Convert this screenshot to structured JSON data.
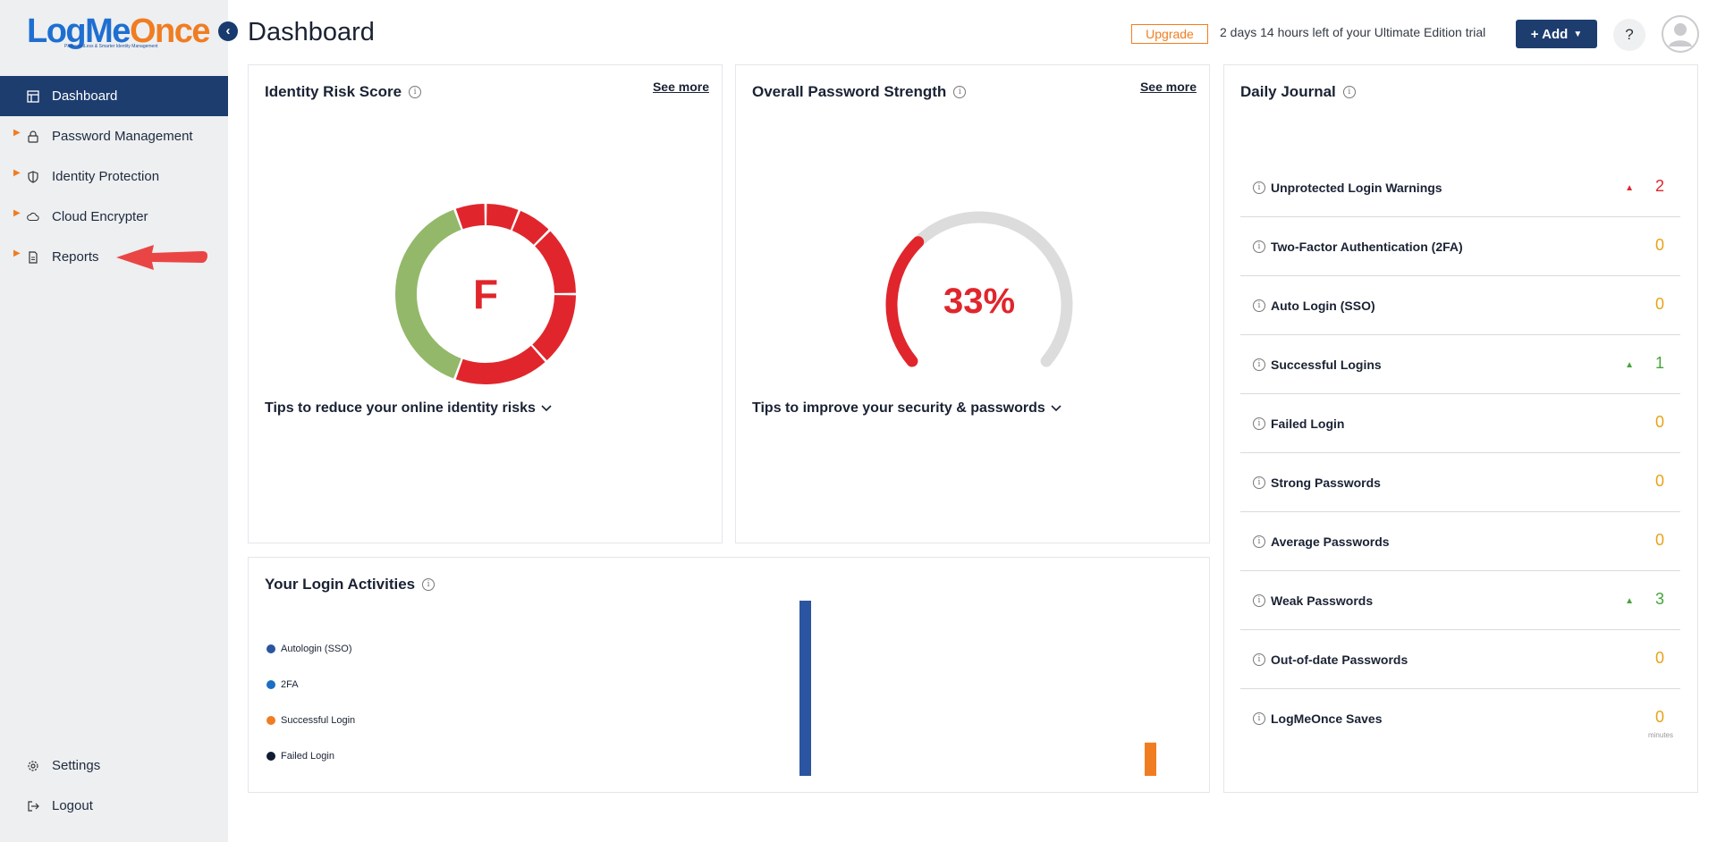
{
  "brand": {
    "logo_part1": "LogMe",
    "logo_part2": "Once",
    "tagline": "PasswordLess & Smarter Identity Management"
  },
  "sidebar": {
    "collapse_icon": "chevron-left-icon",
    "items": [
      {
        "label": "Dashboard",
        "icon": "dashboard-icon",
        "active": true
      },
      {
        "label": "Password Management",
        "icon": "lock-icon"
      },
      {
        "label": "Identity Protection",
        "icon": "shield-icon"
      },
      {
        "label": "Cloud Encrypter",
        "icon": "cloud-icon"
      },
      {
        "label": "Reports",
        "icon": "document-icon"
      }
    ],
    "bottom": [
      {
        "label": "Settings",
        "icon": "gear-icon"
      },
      {
        "label": "Logout",
        "icon": "logout-icon"
      }
    ]
  },
  "header": {
    "title": "Dashboard",
    "upgrade_label": "Upgrade",
    "trial_text": "2 days 14 hours left of your Ultimate Edition trial",
    "add_label": "+ Add",
    "help_label": "?"
  },
  "identity_risk": {
    "title": "Identity Risk Score",
    "see_more": "See more",
    "grade": "F",
    "tips": "Tips to reduce your online identity risks",
    "colors": {
      "good": "#93b86a",
      "bad": "#e0262c"
    }
  },
  "password_strength": {
    "title": "Overall Password Strength",
    "see_more": "See more",
    "percent_label": "33%",
    "percent_value": 33,
    "tips": "Tips to improve your security & passwords",
    "colors": {
      "fill": "#e0262c",
      "track": "#dcdcdc"
    }
  },
  "login_activities": {
    "title": "Your Login Activities",
    "legend": [
      {
        "label": "Autologin (SSO)",
        "color": "#2b55a0"
      },
      {
        "label": "2FA",
        "color": "#1c6fc2"
      },
      {
        "label": "Successful Login",
        "color": "#f07d21"
      },
      {
        "label": "Failed Login",
        "color": "#111c33"
      }
    ]
  },
  "chart_data": {
    "type": "bar",
    "title": "Your Login Activities",
    "series": [
      {
        "name": "Autologin (SSO)",
        "color": "#2b55a0",
        "relative_value": 1.0
      },
      {
        "name": "Successful Login",
        "color": "#f07d21",
        "relative_value": 0.19
      }
    ],
    "xlabel": "",
    "ylabel": ""
  },
  "daily_journal": {
    "title": "Daily Journal",
    "rows": [
      {
        "label": "Unprotected Login Warnings",
        "value": "2",
        "trend": "up",
        "color": "#e0262c"
      },
      {
        "label": "Two-Factor Authentication (2FA)",
        "value": "0",
        "trend": "",
        "color": "#e8a21a"
      },
      {
        "label": "Auto Login (SSO)",
        "value": "0",
        "trend": "",
        "color": "#e8a21a"
      },
      {
        "label": "Successful Logins",
        "value": "1",
        "trend": "up",
        "color": "#45a43a"
      },
      {
        "label": "Failed Login",
        "value": "0",
        "trend": "",
        "color": "#e8a21a"
      },
      {
        "label": "Strong Passwords",
        "value": "0",
        "trend": "",
        "color": "#e8a21a"
      },
      {
        "label": "Average Passwords",
        "value": "0",
        "trend": "",
        "color": "#e8a21a"
      },
      {
        "label": "Weak Passwords",
        "value": "3",
        "trend": "up",
        "color": "#45a43a"
      },
      {
        "label": "Out-of-date Passwords",
        "value": "0",
        "trend": "",
        "color": "#e8a21a"
      },
      {
        "label": "LogMeOnce Saves",
        "value": "0",
        "trend": "",
        "color": "#e8a21a",
        "sub": "minutes"
      }
    ]
  }
}
